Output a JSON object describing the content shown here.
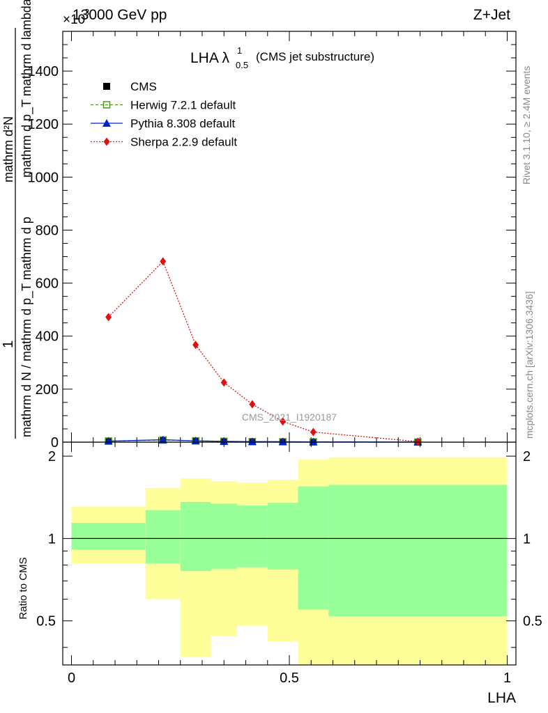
{
  "header": {
    "left": "13000 GeV pp",
    "right": "Z+Jet",
    "exponent": "×10",
    "exponent_power": "3"
  },
  "side_labels": {
    "rivet": "Rivet 3.1.10, ≥ 2.4M events",
    "mcplots": "mcplots.cern.ch [arXiv:1306.3436]"
  },
  "watermark": "CMS_2021_I1920187",
  "chart_data": [
    {
      "type": "line",
      "title": "LHA λ",
      "title_super": "1",
      "title_sub": "0.5",
      "title_suffix": "(CMS jet substructure)",
      "ylabel_numerator": "1",
      "ylabel_denominator": "mathrm d N / mathrm d p_T mathrm d p",
      "ylabel_sub": "T",
      "ylabel_top": "mathrm d²N",
      "ylabel_top2": "mathrm d p_T mathrm d lambda",
      "ylim": [
        0,
        1550
      ],
      "yticks": [
        0,
        200,
        400,
        600,
        800,
        1000,
        1200,
        1400
      ],
      "xlim": [
        -0.02,
        1.02
      ],
      "legend_position": "top-left",
      "series": [
        {
          "name": "CMS",
          "color": "#000000",
          "marker": "square-filled",
          "line": "none",
          "x": [
            0.085,
            0.21,
            0.285,
            0.35,
            0.415,
            0.485,
            0.555,
            0.795
          ],
          "y": [
            4,
            8,
            5,
            3,
            2,
            1.5,
            1,
            0.4
          ]
        },
        {
          "name": "Herwig 7.2.1 default",
          "color": "#4a9a1a",
          "marker": "square-open",
          "line": "dashed",
          "x": [
            0.085,
            0.21,
            0.285,
            0.35,
            0.415,
            0.485,
            0.555,
            0.795
          ],
          "y": [
            4,
            8,
            5,
            3,
            2,
            1.5,
            1,
            0.4
          ]
        },
        {
          "name": "Pythia 8.308 default",
          "color": "#0022cc",
          "marker": "triangle-filled",
          "line": "solid",
          "x": [
            0.085,
            0.21,
            0.285,
            0.35,
            0.415,
            0.485,
            0.555,
            0.795
          ],
          "y": [
            4,
            9,
            5,
            3,
            2,
            1.5,
            1,
            0.4
          ]
        },
        {
          "name": "Sherpa 2.2.9 default",
          "color": "#e01010",
          "marker": "diamond-filled",
          "line": "dotted",
          "x": [
            0.085,
            0.21,
            0.285,
            0.35,
            0.415,
            0.485,
            0.555,
            0.795
          ],
          "y": [
            472,
            682,
            367,
            225,
            143,
            78,
            38,
            2
          ]
        }
      ]
    },
    {
      "type": "area",
      "ylabel": "Ratio to CMS",
      "xlabel": "LHA",
      "ylim": [
        0.345,
        2.25
      ],
      "yticks": [
        0.5,
        1,
        2
      ],
      "ytick_labels": [
        "0.5",
        "1",
        "2"
      ],
      "xlim": [
        -0.02,
        1.02
      ],
      "xticks": [
        0,
        0.5,
        1
      ],
      "xtick_labels": [
        "0",
        "0.5",
        "1"
      ],
      "reference_line": 1,
      "bins": [
        {
          "x0": 0.0,
          "x1": 0.17,
          "yellow": [
            0.81,
            1.31
          ],
          "green": [
            0.91,
            1.14
          ]
        },
        {
          "x0": 0.17,
          "x1": 0.25,
          "yellow": [
            0.6,
            1.53
          ],
          "green": [
            0.81,
            1.27
          ]
        },
        {
          "x0": 0.25,
          "x1": 0.32,
          "yellow": [
            0.37,
            1.66
          ],
          "green": [
            0.76,
            1.36
          ]
        },
        {
          "x0": 0.32,
          "x1": 0.38,
          "yellow": [
            0.44,
            1.62
          ],
          "green": [
            0.775,
            1.34
          ]
        },
        {
          "x0": 0.38,
          "x1": 0.45,
          "yellow": [
            0.48,
            1.6
          ],
          "green": [
            0.785,
            1.32
          ]
        },
        {
          "x0": 0.45,
          "x1": 0.52,
          "yellow": [
            0.42,
            1.64
          ],
          "green": [
            0.77,
            1.35
          ]
        },
        {
          "x0": 0.52,
          "x1": 0.59,
          "yellow": [
            0.345,
            1.94
          ],
          "green": [
            0.55,
            1.55
          ]
        },
        {
          "x0": 0.59,
          "x1": 1.0,
          "yellow": [
            0.345,
            1.98
          ],
          "green": [
            0.52,
            1.57
          ]
        }
      ],
      "band_colors": {
        "yellow": "#ffff99",
        "green": "#99ff99"
      }
    }
  ]
}
